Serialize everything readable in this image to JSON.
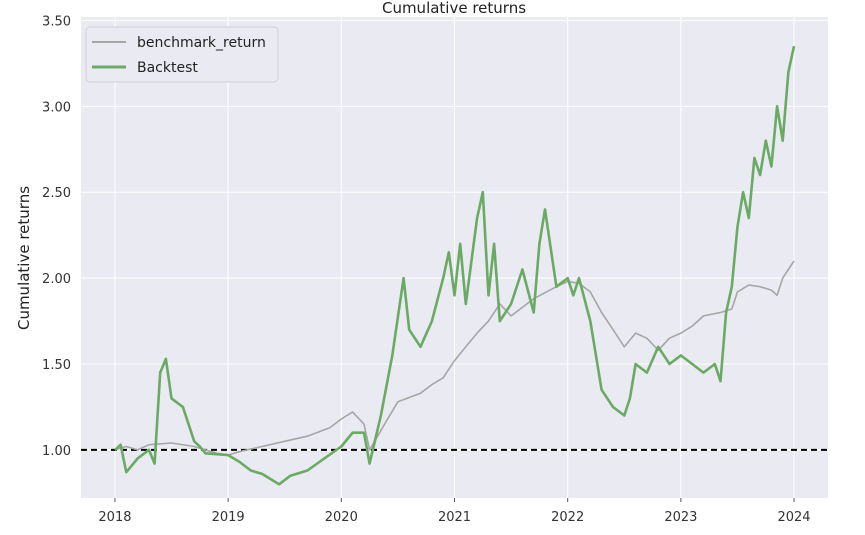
{
  "chart_data": {
    "type": "line",
    "title": "Cumulative returns",
    "xlabel": "",
    "ylabel": "Cumulative returns",
    "xlim": [
      2017.7,
      2024.3
    ],
    "ylim": [
      0.72,
      3.52
    ],
    "xticks": [
      2018,
      2019,
      2020,
      2021,
      2022,
      2023,
      2024
    ],
    "xtick_labels": [
      "2018",
      "2019",
      "2020",
      "2021",
      "2022",
      "2023",
      "2024"
    ],
    "yticks": [
      1.0,
      1.5,
      2.0,
      2.5,
      3.0,
      3.5
    ],
    "ytick_labels": [
      "1.00",
      "1.50",
      "2.00",
      "2.50",
      "3.00",
      "3.50"
    ],
    "reference_line": {
      "y": 1.0,
      "style": "dashed",
      "color": "#000000"
    },
    "grid": true,
    "legend_position": "top-left",
    "colors": {
      "background": "#eaeaf2",
      "grid": "#ffffff",
      "benchmark": "#a6a6a6",
      "backtest": "#6aaa64"
    },
    "series": [
      {
        "name": "benchmark_return",
        "x": [
          2018.0,
          2018.1,
          2018.2,
          2018.3,
          2018.5,
          2018.7,
          2018.9,
          2019.0,
          2019.1,
          2019.3,
          2019.5,
          2019.7,
          2019.9,
          2020.0,
          2020.1,
          2020.2,
          2020.25,
          2020.4,
          2020.5,
          2020.7,
          2020.8,
          2020.9,
          2021.0,
          2021.1,
          2021.2,
          2021.3,
          2021.4,
          2021.5,
          2021.7,
          2021.9,
          2022.0,
          2022.1,
          2022.2,
          2022.3,
          2022.4,
          2022.5,
          2022.6,
          2022.7,
          2022.8,
          2022.9,
          2023.0,
          2023.1,
          2023.2,
          2023.35,
          2023.45,
          2023.5,
          2023.6,
          2023.7,
          2023.8,
          2023.85,
          2023.9,
          2024.0
        ],
        "values": [
          1.0,
          1.02,
          1.0,
          1.03,
          1.04,
          1.02,
          0.98,
          0.97,
          0.99,
          1.02,
          1.05,
          1.08,
          1.13,
          1.18,
          1.22,
          1.15,
          1.0,
          1.17,
          1.28,
          1.33,
          1.38,
          1.42,
          1.52,
          1.6,
          1.68,
          1.75,
          1.85,
          1.78,
          1.88,
          1.95,
          1.98,
          1.97,
          1.92,
          1.8,
          1.7,
          1.6,
          1.68,
          1.65,
          1.58,
          1.65,
          1.68,
          1.72,
          1.78,
          1.8,
          1.82,
          1.92,
          1.96,
          1.95,
          1.93,
          1.9,
          2.0,
          2.1
        ]
      },
      {
        "name": "Backtest",
        "x": [
          2018.0,
          2018.05,
          2018.1,
          2018.2,
          2018.3,
          2018.35,
          2018.4,
          2018.45,
          2018.5,
          2018.6,
          2018.7,
          2018.75,
          2018.8,
          2019.0,
          2019.1,
          2019.2,
          2019.3,
          2019.45,
          2019.55,
          2019.7,
          2019.85,
          2020.0,
          2020.1,
          2020.2,
          2020.25,
          2020.35,
          2020.45,
          2020.55,
          2020.6,
          2020.7,
          2020.8,
          2020.9,
          2020.95,
          2021.0,
          2021.05,
          2021.1,
          2021.2,
          2021.25,
          2021.3,
          2021.35,
          2021.4,
          2021.5,
          2021.6,
          2021.7,
          2021.75,
          2021.8,
          2021.9,
          2022.0,
          2022.05,
          2022.1,
          2022.2,
          2022.3,
          2022.4,
          2022.5,
          2022.55,
          2022.6,
          2022.7,
          2022.8,
          2022.9,
          2023.0,
          2023.1,
          2023.2,
          2023.3,
          2023.35,
          2023.4,
          2023.45,
          2023.5,
          2023.55,
          2023.6,
          2023.65,
          2023.7,
          2023.75,
          2023.8,
          2023.85,
          2023.9,
          2023.95,
          2024.0
        ],
        "values": [
          1.0,
          1.03,
          0.87,
          0.95,
          1.0,
          0.92,
          1.45,
          1.53,
          1.3,
          1.25,
          1.05,
          1.02,
          0.98,
          0.97,
          0.93,
          0.88,
          0.86,
          0.8,
          0.85,
          0.88,
          0.95,
          1.02,
          1.1,
          1.1,
          0.92,
          1.2,
          1.55,
          2.0,
          1.7,
          1.6,
          1.75,
          2.0,
          2.15,
          1.9,
          2.2,
          1.85,
          2.35,
          2.5,
          1.9,
          2.2,
          1.75,
          1.85,
          2.05,
          1.8,
          2.2,
          2.4,
          1.95,
          2.0,
          1.9,
          2.0,
          1.75,
          1.35,
          1.25,
          1.2,
          1.3,
          1.5,
          1.45,
          1.6,
          1.5,
          1.55,
          1.5,
          1.45,
          1.5,
          1.4,
          1.8,
          1.95,
          2.3,
          2.5,
          2.35,
          2.7,
          2.6,
          2.8,
          2.65,
          3.0,
          2.8,
          3.2,
          3.35
        ]
      }
    ]
  }
}
